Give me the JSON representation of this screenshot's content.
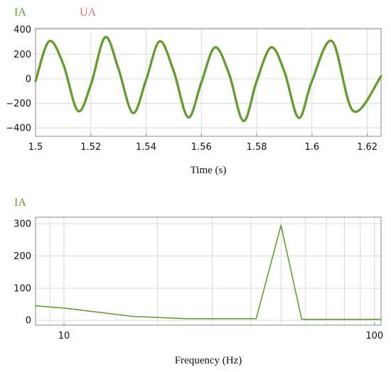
{
  "chart_data": [
    {
      "type": "line",
      "title": "",
      "xlabel": "Time (s)",
      "ylabel": "",
      "xlim": [
        1.5,
        1.625
      ],
      "ylim": [
        -470,
        410
      ],
      "grid": true,
      "legend": "top-left",
      "x_ticks": [
        1.5,
        1.52,
        1.54,
        1.56,
        1.58,
        1.6,
        1.62
      ],
      "x_tick_labels": [
        "1.5",
        "1.52",
        "1.54",
        "1.56",
        "1.58",
        "1.6",
        "1.62"
      ],
      "y_ticks": [
        400,
        200,
        0,
        -200,
        -400
      ],
      "y_tick_labels": [
        "400",
        "200",
        "0",
        "−200",
        "−400"
      ],
      "series": [
        {
          "name": "IA",
          "color": "#5ea02a",
          "x": [
            1.5,
            1.5049,
            1.51,
            1.5153,
            1.52,
            1.5252,
            1.53,
            1.5352,
            1.54,
            1.5449,
            1.55,
            1.5552,
            1.56,
            1.5649,
            1.57,
            1.5752,
            1.58,
            1.5852,
            1.59,
            1.5952,
            1.6,
            1.6073,
            1.615,
            1.625
          ],
          "y": [
            -20,
            305,
            120,
            -262,
            -50,
            338,
            80,
            -280,
            -10,
            305,
            60,
            -316,
            -30,
            255,
            40,
            -345,
            -20,
            255,
            60,
            -320,
            -20,
            305,
            -265,
            20
          ]
        },
        {
          "name": "UA",
          "color": "#e07070",
          "x": [
            1.5,
            1.5049,
            1.51,
            1.5153,
            1.52,
            1.5252,
            1.53,
            1.5352,
            1.54,
            1.5449,
            1.55,
            1.5552,
            1.56,
            1.5649,
            1.57,
            1.5752,
            1.58,
            1.5852,
            1.59,
            1.5952,
            1.6,
            1.6073,
            1.615,
            1.625
          ],
          "y": [
            -20,
            305,
            120,
            -262,
            -50,
            338,
            80,
            -280,
            -10,
            305,
            60,
            -316,
            -30,
            255,
            40,
            -345,
            -20,
            255,
            60,
            -320,
            -20,
            305,
            -265,
            20
          ]
        }
      ]
    },
    {
      "type": "line",
      "title": "",
      "xlabel": "Frequency (Hz)",
      "ylabel": "",
      "xscale": "log",
      "xlim": [
        8.1,
        105
      ],
      "ylim": [
        -15,
        320
      ],
      "grid": true,
      "legend": "top-left",
      "x_ticks": [
        10,
        100
      ],
      "x_tick_labels": [
        "10",
        "100"
      ],
      "y_ticks": [
        300,
        200,
        100,
        0
      ],
      "y_tick_labels": [
        "300",
        "200",
        "100",
        "0"
      ],
      "series": [
        {
          "name": "IA",
          "color": "#5ea02a",
          "x": [
            8.1,
            10,
            16.7,
            25,
            41.6,
            50,
            58.3,
            105
          ],
          "y": [
            45,
            38,
            12,
            5,
            5,
            295,
            3,
            3
          ]
        }
      ]
    }
  ]
}
